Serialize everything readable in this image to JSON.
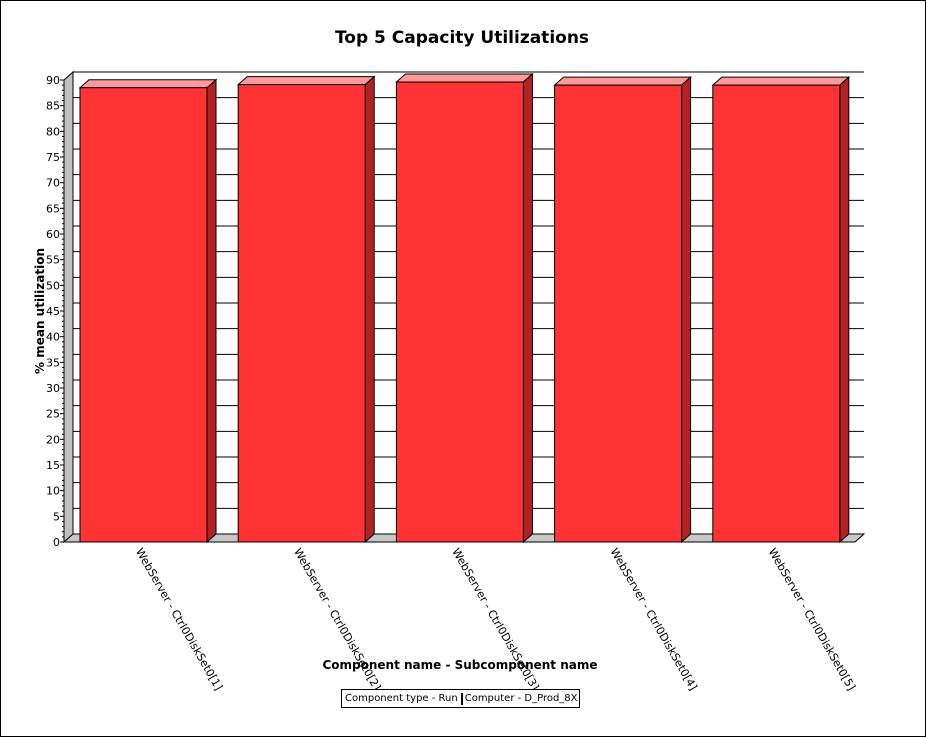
{
  "chart_data": {
    "type": "bar",
    "title": "Top 5 Capacity Utilizations",
    "xlabel": "Component name - Subcomponent name",
    "ylabel": "% mean utilization",
    "categories": [
      "WebServer - Ctrl0DiskSet0[1]",
      "WebServer - Ctrl0DiskSet0[2]",
      "WebServer - Ctrl0DiskSet0[3]",
      "WebServer - Ctrl0DiskSet0[4]",
      "WebServer - Ctrl0DiskSet0[5]"
    ],
    "series": [
      {
        "name": "Computer - D_Prod_8X",
        "values": [
          88.5,
          89.1,
          89.6,
          89.0,
          89.0
        ]
      }
    ],
    "ylim": [
      0,
      90
    ],
    "yticks": [
      0,
      5,
      10,
      15,
      20,
      25,
      30,
      35,
      40,
      45,
      50,
      55,
      60,
      65,
      70,
      75,
      80,
      85,
      90
    ],
    "grid": true,
    "legend": {
      "title": "Component type - Run",
      "placement": "bottom"
    },
    "colors": {
      "bar_front": "#ff3333",
      "bar_top": "#ff9999",
      "bar_side": "#b22222",
      "wall": "#c0c0c0",
      "floor": "#c8c8c8"
    }
  }
}
